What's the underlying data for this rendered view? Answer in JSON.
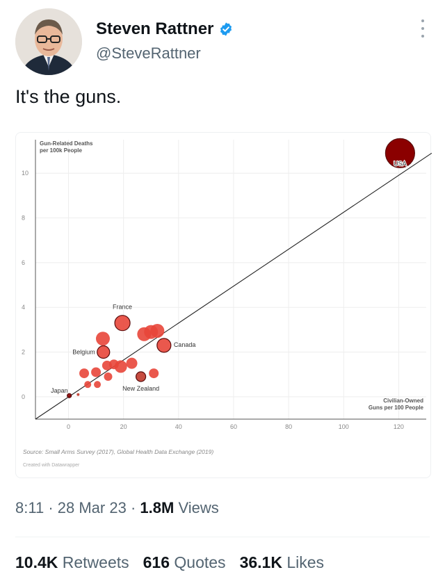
{
  "author": {
    "name": "Steven Rattner",
    "handle": "@SteveRattner",
    "verified": true
  },
  "tweet": {
    "text": "It's the guns."
  },
  "meta": {
    "time": "8:11",
    "date": "28 Mar 23",
    "views_count": "1.8M",
    "views_label": "Views"
  },
  "stats": {
    "retweets_count": "10.4K",
    "retweets_label": "Retweets",
    "quotes_count": "616",
    "quotes_label": "Quotes",
    "likes_count": "36.1K",
    "likes_label": "Likes"
  },
  "chart_data": {
    "type": "scatter",
    "title": "",
    "ylabel_line1": "Gun-Related Deaths",
    "ylabel_line2": "per 100k People",
    "xlabel_line1": "Civilian-Owned",
    "xlabel_line2": "Guns per 100 People",
    "xlim": [
      -12,
      130
    ],
    "ylim": [
      -1,
      11.5
    ],
    "x_ticks": [
      0,
      20,
      40,
      60,
      80,
      100,
      120
    ],
    "y_ticks": [
      0,
      2,
      4,
      6,
      8,
      10
    ],
    "grid": true,
    "trendline": {
      "from": [
        -12,
        -1
      ],
      "to": [
        132,
        10.9
      ]
    },
    "points": [
      {
        "label": "USA",
        "x": 120.5,
        "y": 10.9,
        "size": 21,
        "color": "#8b0000"
      },
      {
        "label": "France",
        "x": 19.6,
        "y": 3.3,
        "size": 11,
        "color": "#e8463a"
      },
      {
        "label": "Canada",
        "x": 34.7,
        "y": 2.3,
        "size": 10,
        "color": "#e8463a"
      },
      {
        "label": "Belgium",
        "x": 12.7,
        "y": 2.0,
        "size": 9,
        "color": "#e8463a"
      },
      {
        "label": "New Zealand",
        "x": 26.3,
        "y": 0.9,
        "size": 7,
        "color": "#c0392b"
      },
      {
        "label": "Japan",
        "x": 0.3,
        "y": 0.05,
        "size": 3,
        "color": "#8b0000"
      },
      {
        "label": "",
        "x": 12.5,
        "y": 2.6,
        "size": 10,
        "color": "#e8463a"
      },
      {
        "label": "",
        "x": 27.5,
        "y": 2.8,
        "size": 10,
        "color": "#e8463a"
      },
      {
        "label": "",
        "x": 30.0,
        "y": 2.9,
        "size": 10,
        "color": "#e8463a"
      },
      {
        "label": "",
        "x": 32.3,
        "y": 2.95,
        "size": 10,
        "color": "#e8463a"
      },
      {
        "label": "",
        "x": 23.0,
        "y": 1.5,
        "size": 8,
        "color": "#e8463a"
      },
      {
        "label": "",
        "x": 19.0,
        "y": 1.35,
        "size": 9,
        "color": "#e8463a"
      },
      {
        "label": "",
        "x": 16.5,
        "y": 1.45,
        "size": 7,
        "color": "#e8463a"
      },
      {
        "label": "",
        "x": 14.0,
        "y": 1.4,
        "size": 7,
        "color": "#e8463a"
      },
      {
        "label": "",
        "x": 10.0,
        "y": 1.1,
        "size": 7,
        "color": "#e8463a"
      },
      {
        "label": "",
        "x": 5.7,
        "y": 1.05,
        "size": 7,
        "color": "#e8463a"
      },
      {
        "label": "",
        "x": 14.4,
        "y": 0.9,
        "size": 6,
        "color": "#e8463a"
      },
      {
        "label": "",
        "x": 31.0,
        "y": 1.05,
        "size": 7,
        "color": "#e8463a"
      },
      {
        "label": "",
        "x": 10.5,
        "y": 0.55,
        "size": 5,
        "color": "#e8463a"
      },
      {
        "label": "",
        "x": 7.0,
        "y": 0.55,
        "size": 5,
        "color": "#e8463a"
      },
      {
        "label": "",
        "x": 3.5,
        "y": 0.1,
        "size": 2,
        "color": "#c0392b"
      }
    ],
    "source": "Source: Small Arms Survey (2017), Global Health Data Exchange (2019)",
    "credit": "Created with Datawrapper"
  },
  "colors": {
    "verified_blue": "#1d9bf0",
    "muted_text": "#536471"
  }
}
